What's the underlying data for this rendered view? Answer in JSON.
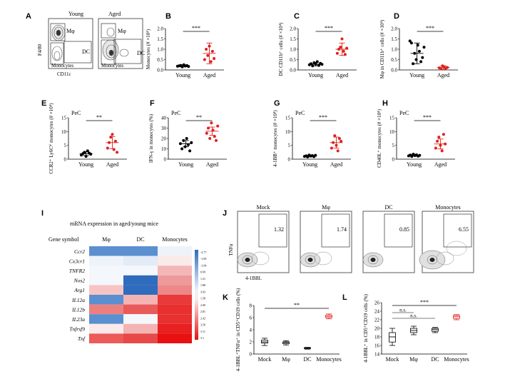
{
  "flow_A": {
    "titles": [
      "Young",
      "Aged"
    ],
    "gates": [
      "Mφ",
      "DC",
      "Monocytes"
    ],
    "xlabel": "CD11c",
    "ylabel": "F4/80"
  },
  "panels": {
    "A": "A",
    "B": "B",
    "C": "C",
    "D": "D",
    "E": "E",
    "F": "F",
    "G": "G",
    "H": "H",
    "I": "I",
    "J": "J",
    "K": "K",
    "L": "L"
  },
  "pec_label": "PeC",
  "sig_labels": {
    "three": "***",
    "two": "**",
    "ns": "n.s."
  },
  "heatmap": {
    "title": "mRNA expression in aged/young mice",
    "gene_header": "Gene symbol",
    "columns": [
      "Mφ",
      "DC",
      "Monocytes"
    ],
    "genes": [
      "Ccr2",
      "Cx3cr1",
      "TNFR2",
      "Nos2",
      "Arg1",
      "IL12a",
      "IL12b",
      "IL23a",
      "Tnfrsf9",
      "Tnf"
    ],
    "colors": [
      [
        "#5b8fd0",
        "#5b8fd0",
        "#eef3fa"
      ],
      [
        "#eef3fa",
        "#e2ebf6",
        "#fbeaea"
      ],
      [
        "#f4f7fb",
        "#f4f7fb",
        "#f3b7b7"
      ],
      [
        "#f4f7fb",
        "#2f6cbd",
        "#ee9a9a"
      ],
      [
        "#f7c4c4",
        "#2f6cbd",
        "#ee8888"
      ],
      [
        "#5b8fd0",
        "#f4b3b3",
        "#e83a3a"
      ],
      [
        "#ee7f7f",
        "#e95a5a",
        "#e83030"
      ],
      [
        "#5b8fd0",
        "#f4f7fb",
        "#e83030"
      ],
      [
        "#fbeaea",
        "#f4b3b3",
        "#e82020"
      ],
      [
        "#ec5a5a",
        "#e84848",
        "#e81010"
      ]
    ],
    "legend_values": [
      "-2.77",
      "-1.90",
      "-1.04",
      "0.69",
      "1.21",
      "1.88",
      "3.03",
      "1.58",
      "2.00",
      "2.81",
      "2.42",
      "3.50",
      "3.11",
      "3.1"
    ]
  },
  "flow_J": {
    "titles": [
      "Mock",
      "Mφ",
      "DC",
      "Monocytes"
    ],
    "values": [
      "1.32",
      "1.74",
      "0.85",
      "6.55"
    ],
    "xlabel": "4-1BBL",
    "ylabel": "TNFα"
  },
  "chart_data": [
    {
      "panel": "B",
      "type": "scatter",
      "ylabel": "Monocytes (# ×10⁴)",
      "categories": [
        "Young",
        "Aged"
      ],
      "ylim": [
        0,
        2.0
      ],
      "ticks": [
        "0.0",
        "0.5",
        "1.0",
        "1.5",
        "2.0"
      ],
      "series": [
        {
          "values": [
            0.18,
            0.2,
            0.22,
            0.15,
            0.25,
            0.19,
            0.21,
            0.17
          ]
        },
        {
          "values": [
            0.5,
            1.0,
            0.7,
            1.15,
            0.4,
            0.9,
            0.55
          ]
        }
      ],
      "summary": [
        {
          "mean": 0.2,
          "err": 0.05
        },
        {
          "mean": 0.8,
          "err": 0.5
        }
      ],
      "sig": "***"
    },
    {
      "panel": "C",
      "type": "scatter",
      "ylabel": "DC CD11b⁺ cells (# ×10⁴)",
      "categories": [
        "Young",
        "Aged"
      ],
      "ylim": [
        0,
        2.0
      ],
      "ticks": [
        "0.0",
        "0.5",
        "1.0",
        "1.5",
        "2.0"
      ],
      "series": [
        {
          "values": [
            0.25,
            0.3,
            0.2,
            0.35,
            0.28,
            0.4,
            0.22,
            0.32,
            0.27
          ]
        },
        {
          "values": [
            0.8,
            1.0,
            1.1,
            1.5,
            0.9,
            0.75,
            1.05
          ]
        }
      ],
      "summary": [
        {
          "mean": 0.28,
          "err": 0.08
        },
        {
          "mean": 1.0,
          "err": 0.3
        }
      ],
      "sig": "***"
    },
    {
      "panel": "D",
      "type": "scatter",
      "ylabel": "Mφ in CD11b⁺ cells (# ×10⁴)",
      "categories": [
        "Young",
        "Aged"
      ],
      "ylim": [
        0,
        2.0
      ],
      "ticks": [
        "0.0",
        "0.5",
        "1.0",
        "1.5",
        "2.0"
      ],
      "series": [
        {
          "values": [
            1.4,
            1.3,
            0.3,
            0.8,
            0.5,
            1.2,
            0.9,
            0.4,
            0.6,
            1.1
          ]
        },
        {
          "values": [
            0.1,
            0.05,
            0.2,
            0.15,
            0.08,
            0.12
          ]
        }
      ],
      "summary": [
        {
          "mean": 0.8,
          "err": 0.5
        },
        {
          "mean": 0.12,
          "err": 0.08
        }
      ],
      "sig": "***"
    },
    {
      "panel": "E",
      "type": "scatter",
      "ylabel": "CCR2⁺ Ly6Cʰⁱ monocytes (# ×10⁴)",
      "categories": [
        "Young",
        "Aged"
      ],
      "ylim": [
        0,
        15
      ],
      "ticks": [
        "0",
        "5",
        "10",
        "15"
      ],
      "series": [
        {
          "values": [
            1.5,
            2.0,
            2.5,
            1.0,
            3.0,
            2.2,
            1.8
          ]
        },
        {
          "values": [
            4.0,
            6.0,
            8.0,
            9.0,
            3.5,
            6.5,
            2.5
          ]
        }
      ],
      "summary": [
        {
          "mean": 2.0,
          "err": 0.7
        },
        {
          "mean": 6.0,
          "err": 2.2
        }
      ],
      "sig": "**"
    },
    {
      "panel": "F",
      "type": "scatter",
      "ylabel": "IFN-γ in monocytes (%)",
      "categories": [
        "Young",
        "Aged"
      ],
      "ylim": [
        0,
        40
      ],
      "ticks": [
        "0",
        "10",
        "20",
        "30",
        "40"
      ],
      "series": [
        {
          "values": [
            15,
            10,
            18,
            12,
            20,
            14,
            8,
            16
          ]
        },
        {
          "values": [
            25,
            30,
            20,
            35,
            28,
            22,
            18,
            32
          ]
        }
      ],
      "summary": [
        {
          "mean": 15,
          "err": 3
        },
        {
          "mean": 27,
          "err": 4
        }
      ],
      "sig": "**"
    },
    {
      "panel": "G",
      "type": "scatter",
      "ylabel": "4-1BB⁺ monocytes (# ×10⁴)",
      "categories": [
        "Young",
        "Aged"
      ],
      "ylim": [
        0,
        15
      ],
      "ticks": [
        "0",
        "5",
        "10",
        "15"
      ],
      "series": [
        {
          "values": [
            1.0,
            1.2,
            0.8,
            1.5,
            1.1,
            1.3,
            0.9,
            1.4
          ]
        },
        {
          "values": [
            4.0,
            6.0,
            8.5,
            5.0,
            3.0,
            7.5,
            6.5
          ]
        }
      ],
      "summary": [
        {
          "mean": 1.2,
          "err": 0.3
        },
        {
          "mean": 6.0,
          "err": 2.0
        }
      ],
      "sig": "***"
    },
    {
      "panel": "H",
      "type": "scatter",
      "ylabel": "CD40L⁺ monocytes (# ×10⁴)",
      "categories": [
        "Young",
        "Aged"
      ],
      "ylim": [
        0,
        15
      ],
      "ticks": [
        "0",
        "5",
        "10",
        "15"
      ],
      "series": [
        {
          "values": [
            1.2,
            1.5,
            1.0,
            1.8,
            1.3,
            1.6,
            1.1,
            1.4
          ]
        },
        {
          "values": [
            4.0,
            6.5,
            8.0,
            5.0,
            3.0,
            9.0,
            5.5
          ]
        }
      ],
      "summary": [
        {
          "mean": 1.4,
          "err": 0.3
        },
        {
          "mean": 5.5,
          "err": 1.8
        }
      ],
      "sig": "***"
    },
    {
      "panel": "K",
      "type": "box",
      "ylabel": "4-1BBL⁺TNFα⁺ in CD5⁺CD19 cells (%)",
      "categories": [
        "Mock",
        "Mφ",
        "DC",
        "Monocytes"
      ],
      "ylim": [
        0,
        8
      ],
      "ticks": [
        "0",
        "2",
        "4",
        "6",
        "8"
      ],
      "boxes": [
        [
          1.4,
          1.8,
          2.0,
          2.3,
          2.6
        ],
        [
          1.5,
          1.7,
          1.9,
          2.0,
          2.2
        ],
        [
          0.8,
          0.9,
          1.0,
          1.05,
          1.1
        ],
        [
          5.8,
          6.0,
          6.2,
          6.4,
          6.6
        ]
      ],
      "sig": "**"
    },
    {
      "panel": "L",
      "type": "box",
      "ylabel": "4-1BBL⁺ in CD5⁺CD19 cells (%)",
      "categories": [
        "Mock",
        "Mφ",
        "DC",
        "Monocytes"
      ],
      "ylim": [
        14,
        26
      ],
      "ticks": [
        "14",
        "16",
        "18",
        "20",
        "22",
        "24",
        "26"
      ],
      "boxes": [
        [
          16,
          16.8,
          18,
          19,
          20
        ],
        [
          18.5,
          19,
          19.5,
          20,
          20.5
        ],
        [
          19,
          19.3,
          19.7,
          20,
          20.2
        ],
        [
          22,
          22.3,
          22.7,
          23,
          23.2
        ]
      ],
      "sig": "***",
      "ns": [
        "n.s.",
        "n.s."
      ]
    }
  ]
}
